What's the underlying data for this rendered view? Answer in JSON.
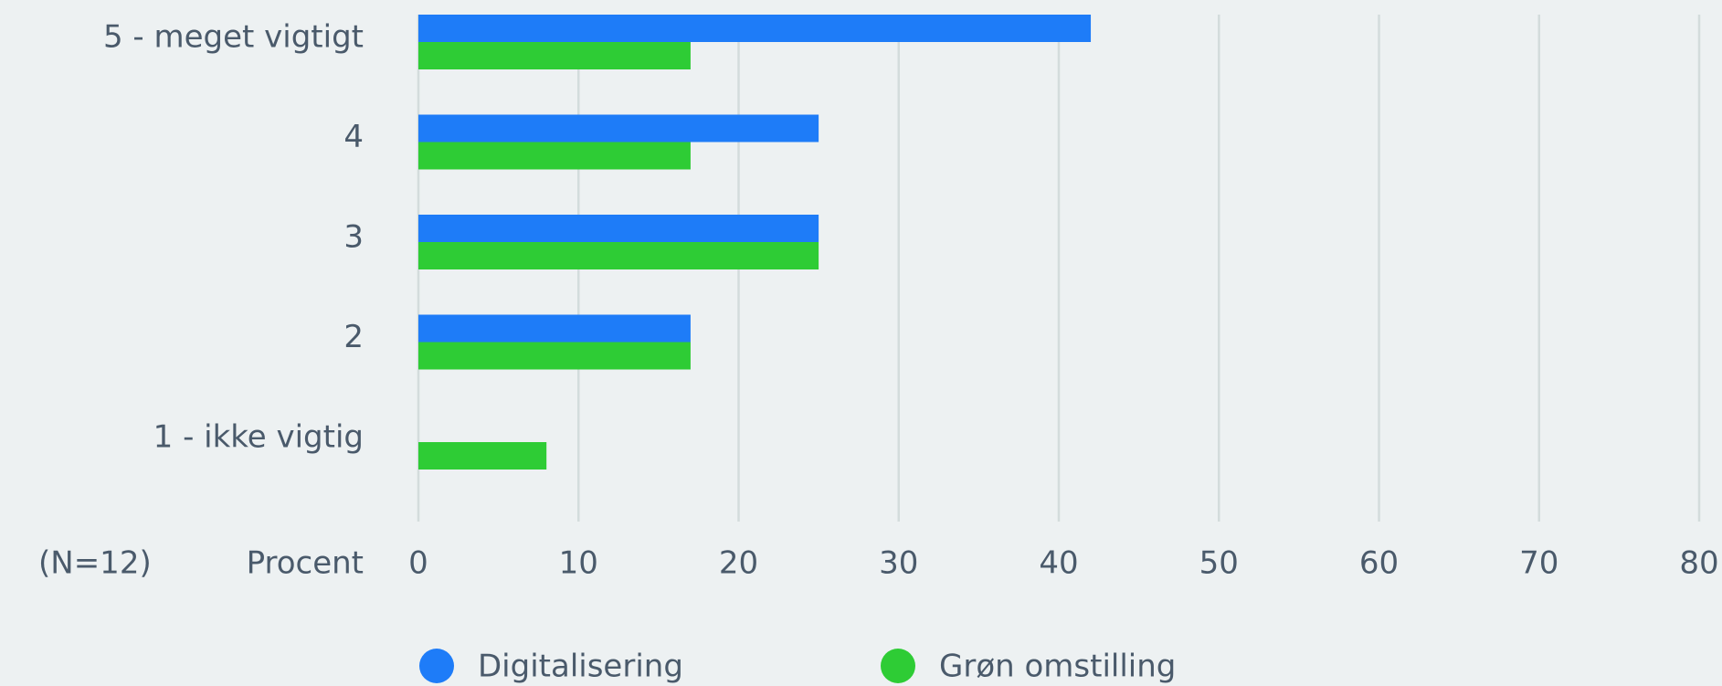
{
  "chart_data": {
    "type": "barh",
    "categories": [
      "5 - meget vigtigt",
      "4",
      "3",
      "2",
      "1 - ikke vigtig"
    ],
    "series": [
      {
        "name": "Digitalisering",
        "color": "#1e7cf8",
        "values": [
          42,
          25,
          25,
          17,
          0
        ]
      },
      {
        "name": "Grøn omstilling",
        "color": "#2ecc35",
        "values": [
          17,
          17,
          25,
          17,
          8
        ]
      }
    ],
    "xlabel": "Procent",
    "note": "(N=12)",
    "xlim": [
      0,
      80
    ],
    "xticks": [
      0,
      10,
      20,
      30,
      40,
      50,
      60,
      70,
      80
    ],
    "grid": true
  }
}
